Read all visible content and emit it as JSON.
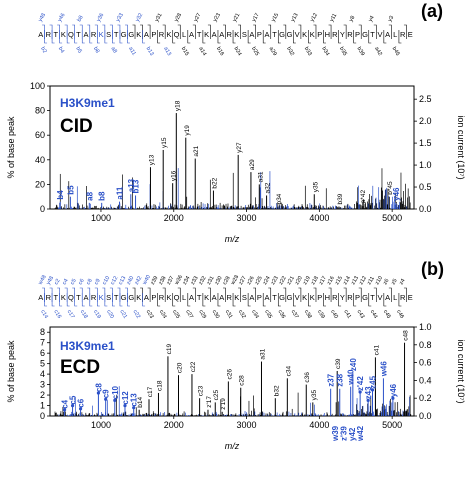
{
  "chart_data": [
    {
      "type": "bar",
      "panel_label": "(a)",
      "sequence": "ARTKQTARKSTGGKAPRKQLATKAARKSAPATGGVKKPHRYRPGTVALRE",
      "fragments_top": [
        "y48",
        "y46",
        "b8",
        "y36",
        "y33",
        "y32",
        "y31",
        "y28",
        "y27",
        "y23",
        "y21",
        "y17",
        "y15",
        "y13",
        "y12",
        "y11",
        "y8",
        "y4",
        "y3"
      ],
      "fragments_bottom": [
        "b2",
        "b4",
        "b5",
        "b8",
        "a8",
        "a11",
        "b13",
        "a13",
        "b15",
        "a14",
        "b16",
        "b24",
        "b25",
        "a29",
        "b32",
        "b33",
        "b34",
        "b35",
        "b39",
        "a42",
        "b45"
      ],
      "mods_annotation": "H3K9me1",
      "method": "CID",
      "xlabel": "m/z",
      "ylabel_left": "% of base peak",
      "ylabel_right": "ion current (10⁷)",
      "xlim": [
        300,
        5300
      ],
      "ylim": [
        0,
        100
      ],
      "ylim_right": [
        0,
        2.8
      ],
      "x_ticks": [
        1000,
        2000,
        3000,
        4000,
        5000
      ],
      "y_ticks": [
        0,
        20,
        40,
        60,
        80,
        100
      ],
      "y_ticks_right": [
        "0.0",
        "0.5",
        "1.0",
        "1.5",
        "2.0",
        "2.5"
      ],
      "colors": {
        "blue": "#2a50c8",
        "black": "#000000"
      },
      "annotations": [
        {
          "text": "b4",
          "x": 440,
          "y": 6,
          "color": "blue",
          "bold": true,
          "rot": true
        },
        {
          "text": "b5",
          "x": 580,
          "y": 10,
          "color": "blue",
          "bold": true,
          "rot": true
        },
        {
          "text": "a8",
          "x": 840,
          "y": 5,
          "color": "blue",
          "bold": true,
          "rot": true
        },
        {
          "text": "b8",
          "x": 1010,
          "y": 5,
          "color": "blue",
          "bold": true,
          "rot": true
        },
        {
          "text": "a11",
          "x": 1255,
          "y": 6,
          "color": "blue",
          "bold": true,
          "rot": true
        },
        {
          "text": "a13",
          "x": 1410,
          "y": 12,
          "color": "blue",
          "bold": true,
          "rot": true
        },
        {
          "text": "b13",
          "x": 1475,
          "y": 11,
          "color": "blue",
          "bold": true,
          "rot": true
        },
        {
          "text": "y13",
          "x": 1680,
          "y": 34,
          "color": "black",
          "bold": false,
          "rot": true
        },
        {
          "text": "y15",
          "x": 1855,
          "y": 48,
          "color": "black",
          "bold": false,
          "rot": true
        },
        {
          "text": "y16",
          "x": 1985,
          "y": 21,
          "color": "black",
          "bold": false,
          "rot": true
        },
        {
          "text": "y18",
          "x": 2035,
          "y": 78,
          "color": "black",
          "bold": false,
          "rot": true
        },
        {
          "text": "y19",
          "x": 2165,
          "y": 58,
          "color": "black",
          "bold": false,
          "rot": true
        },
        {
          "text": "a21",
          "x": 2295,
          "y": 41,
          "color": "black",
          "bold": false,
          "rot": true
        },
        {
          "text": "b22",
          "x": 2545,
          "y": 15,
          "color": "black",
          "bold": false,
          "rot": true
        },
        {
          "text": "y27",
          "x": 2885,
          "y": 44,
          "color": "black",
          "bold": false,
          "rot": true
        },
        {
          "text": "a29",
          "x": 3060,
          "y": 30,
          "color": "black",
          "bold": false,
          "rot": true
        },
        {
          "text": "a31",
          "x": 3175,
          "y": 20,
          "color": "black",
          "bold": false,
          "rot": true
        },
        {
          "text": "a32",
          "x": 3275,
          "y": 11,
          "color": "black",
          "bold": false,
          "rot": true
        },
        {
          "text": "b34",
          "x": 3430,
          "y": 2,
          "color": "black",
          "bold": false,
          "rot": true
        },
        {
          "text": "y35",
          "x": 3930,
          "y": 12,
          "color": "black",
          "bold": false,
          "rot": true
        },
        {
          "text": "b39",
          "x": 4270,
          "y": 2,
          "color": "black",
          "bold": false,
          "rot": true
        },
        {
          "text": "a*42",
          "x": 4585,
          "y": 3,
          "color": "black",
          "bold": false,
          "rot": true
        },
        {
          "text": "b*45",
          "x": 4960,
          "y": 10,
          "color": "black",
          "bold": false,
          "rot": true
        },
        {
          "text": "y46",
          "x": 5050,
          "y": 5,
          "color": "blue",
          "bold": true,
          "rot": true
        }
      ]
    },
    {
      "type": "bar",
      "panel_label": "(b)",
      "sequence": "ARTKQTARKSTGGKAPRKQLATKAARKSAPATGGVKKPHRYRPGTVALRE",
      "fragments_top": [
        "w48",
        "y48",
        "c2",
        "c4",
        "c5",
        "c6",
        "c8",
        "c9",
        "c10",
        "c12",
        "c13",
        "z40",
        "z42",
        "w40",
        "z39",
        "z38",
        "z37",
        "w36",
        "z34",
        "z33",
        "z32",
        "z31",
        "z30",
        "c28",
        "w28",
        "z27",
        "z26",
        "z25",
        "z24",
        "z23",
        "z22",
        "z21",
        "z20",
        "z19",
        "z18",
        "z17",
        "z16",
        "z15",
        "z14",
        "z13",
        "z12",
        "z11",
        "z10",
        "z6",
        "z5",
        "z4"
      ],
      "fragments_bottom": [
        "c14",
        "c16",
        "c17",
        "c18",
        "c19",
        "c20",
        "c21",
        "c22",
        "c23",
        "c24",
        "c25",
        "c27",
        "c29",
        "c30",
        "c31",
        "c32",
        "c34",
        "c35",
        "c36",
        "c37",
        "c38",
        "c39",
        "c40",
        "c41",
        "c43",
        "c44",
        "c45",
        "c46"
      ],
      "mods_annotation": "H3K9me1",
      "method": "ECD",
      "xlabel": "m/z",
      "ylabel_left": "% of base peak",
      "ylabel_right": "ion current (10⁷)",
      "xlim": [
        300,
        5300
      ],
      "ylim": [
        0,
        8.5
      ],
      "ylim_right": [
        0,
        1.0
      ],
      "x_ticks": [
        1000,
        2000,
        3000,
        4000,
        5000
      ],
      "y_ticks": [
        0,
        1,
        2,
        3,
        4,
        5,
        6,
        7,
        8
      ],
      "y_ticks_right": [
        "0.0",
        "0.2",
        "0.4",
        "0.6",
        "0.8",
        "1.0"
      ],
      "colors": {
        "blue": "#2a50c8",
        "black": "#000000"
      },
      "annotations": [
        {
          "text": "c4",
          "x": 500,
          "y": 0.5,
          "color": "blue",
          "bold": true,
          "rot": true
        },
        {
          "text": "c5",
          "x": 610,
          "y": 0.9,
          "color": "blue",
          "bold": true,
          "rot": true
        },
        {
          "text": "c6",
          "x": 720,
          "y": 0.6,
          "color": "blue",
          "bold": true,
          "rot": true
        },
        {
          "text": "c8",
          "x": 965,
          "y": 2.1,
          "color": "blue",
          "bold": true,
          "rot": true
        },
        {
          "text": "c9",
          "x": 1065,
          "y": 1.5,
          "color": "blue",
          "bold": true,
          "rot": true
        },
        {
          "text": "c10",
          "x": 1190,
          "y": 1.4,
          "color": "blue",
          "bold": true,
          "rot": true
        },
        {
          "text": "c12",
          "x": 1330,
          "y": 0.9,
          "color": "blue",
          "bold": true,
          "rot": true
        },
        {
          "text": "c13",
          "x": 1450,
          "y": 0.7,
          "color": "blue",
          "bold": true,
          "rot": true
        },
        {
          "text": "b14",
          "x": 1525,
          "y": 0.6,
          "color": "black",
          "bold": false,
          "rot": true
        },
        {
          "text": "c17",
          "x": 1660,
          "y": 1.6,
          "color": "black",
          "bold": false,
          "rot": true
        },
        {
          "text": "c18",
          "x": 1790,
          "y": 2.2,
          "color": "black",
          "bold": false,
          "rot": true
        },
        {
          "text": "c19",
          "x": 1920,
          "y": 5.7,
          "color": "black",
          "bold": false,
          "rot": true
        },
        {
          "text": "c20",
          "x": 2065,
          "y": 3.9,
          "color": "black",
          "bold": false,
          "rot": true
        },
        {
          "text": "c22",
          "x": 2250,
          "y": 4.0,
          "color": "black",
          "bold": false,
          "rot": true
        },
        {
          "text": "c23",
          "x": 2355,
          "y": 1.7,
          "color": "black",
          "bold": false,
          "rot": true
        },
        {
          "text": "z'17",
          "x": 2470,
          "y": 0.6,
          "color": "black",
          "bold": false,
          "rot": true
        },
        {
          "text": "c25",
          "x": 2570,
          "y": 1.3,
          "color": "black",
          "bold": false,
          "rot": true
        },
        {
          "text": "z'19",
          "x": 2665,
          "y": 0.4,
          "color": "black",
          "bold": false,
          "rot": true
        },
        {
          "text": "c26",
          "x": 2750,
          "y": 3.3,
          "color": "black",
          "bold": false,
          "rot": true
        },
        {
          "text": "c28",
          "x": 2920,
          "y": 2.7,
          "color": "black",
          "bold": false,
          "rot": true
        },
        {
          "text": "a31",
          "x": 3205,
          "y": 5.2,
          "color": "black",
          "bold": false,
          "rot": true
        },
        {
          "text": "b32",
          "x": 3395,
          "y": 1.7,
          "color": "black",
          "bold": false,
          "rot": true
        },
        {
          "text": "c34",
          "x": 3560,
          "y": 3.6,
          "color": "black",
          "bold": false,
          "rot": true
        },
        {
          "text": "c36",
          "x": 3820,
          "y": 3.0,
          "color": "black",
          "bold": false,
          "rot": true
        },
        {
          "text": "y35",
          "x": 3910,
          "y": 1.3,
          "color": "black",
          "bold": false,
          "rot": true
        },
        {
          "text": "c39",
          "x": 4245,
          "y": 4.3,
          "color": "black",
          "bold": false,
          "rot": true
        },
        {
          "text": "z37",
          "x": 4155,
          "y": 2.6,
          "color": "blue",
          "bold": true,
          "rot": true
        },
        {
          "text": "z38",
          "x": 4280,
          "y": 2.6,
          "color": "blue",
          "bold": true,
          "rot": true
        },
        {
          "text": "w40",
          "x": 4430,
          "y": 2.8,
          "color": "blue",
          "bold": true,
          "rot": true
        },
        {
          "text": "z40",
          "x": 4460,
          "y": 4.1,
          "color": "blue",
          "bold": true,
          "rot": true
        },
        {
          "text": "z'42",
          "x": 4560,
          "y": 2.2,
          "color": "blue",
          "bold": true,
          "rot": true
        },
        {
          "text": "z43",
          "x": 4670,
          "y": 1.4,
          "color": "blue",
          "bold": true,
          "rot": true
        },
        {
          "text": "z45",
          "x": 4730,
          "y": 2.4,
          "color": "blue",
          "bold": true,
          "rot": true
        },
        {
          "text": "w46",
          "x": 4880,
          "y": 3.6,
          "color": "blue",
          "bold": true,
          "rot": true
        },
        {
          "text": "y46",
          "x": 5010,
          "y": 1.6,
          "color": "blue",
          "bold": true,
          "rot": true
        },
        {
          "text": "c41",
          "x": 4770,
          "y": 5.6,
          "color": "black",
          "bold": false,
          "rot": true
        },
        {
          "text": "c48",
          "x": 5170,
          "y": 7.0,
          "color": "black",
          "bold": false,
          "rot": true
        },
        {
          "text": "w39",
          "x": 4215,
          "y": -1.9,
          "color": "blue",
          "bold": true,
          "rot": true
        },
        {
          "text": "z'39",
          "x": 4330,
          "y": -1.9,
          "color": "blue",
          "bold": true,
          "rot": true
        },
        {
          "text": "y42",
          "x": 4450,
          "y": -1.9,
          "color": "blue",
          "bold": true,
          "rot": true
        },
        {
          "text": "w42",
          "x": 4560,
          "y": -1.9,
          "color": "blue",
          "bold": true,
          "rot": true
        }
      ]
    }
  ]
}
